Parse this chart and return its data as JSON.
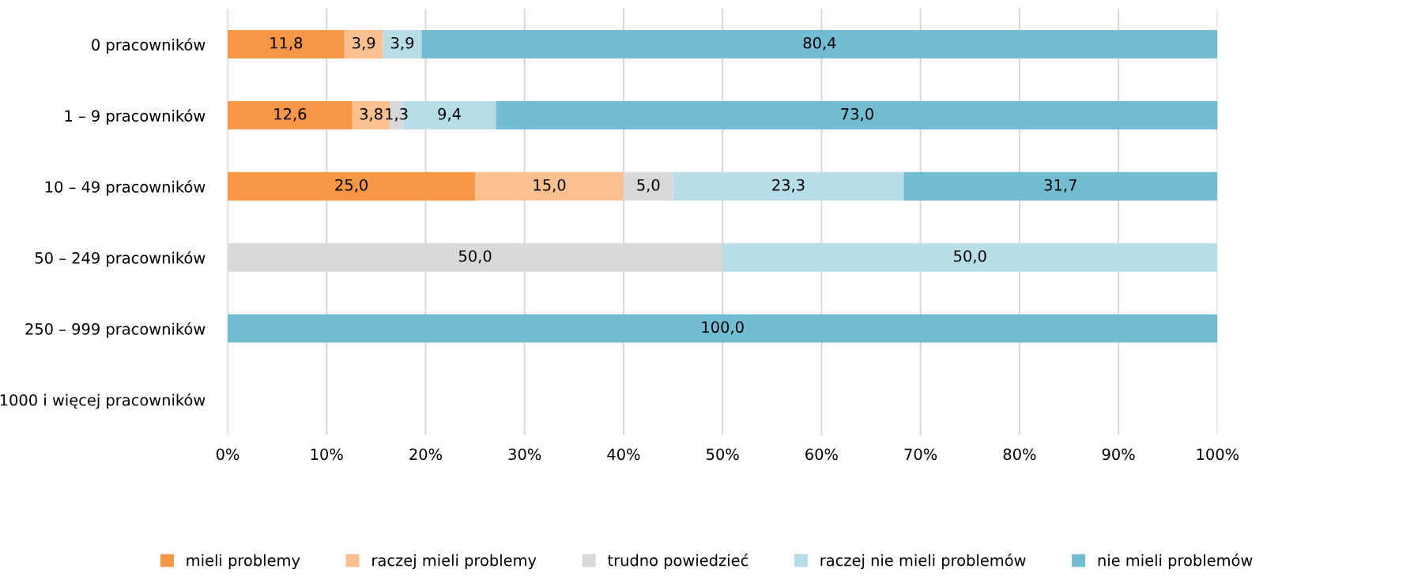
{
  "chart_data": {
    "type": "bar",
    "orientation": "horizontal",
    "stacked": true,
    "categories": [
      "0 pracowników",
      "1 – 9 pracowników",
      "10 – 49 pracowników",
      "50 – 249 pracowników",
      "250 – 999 pracowników",
      "1000 i więcej pracowników"
    ],
    "series": [
      {
        "name": "mieli problemy",
        "color": "#f79646",
        "values": [
          11.8,
          12.6,
          25.0,
          null,
          null,
          null
        ],
        "value_labels": [
          "11,8",
          "12,6",
          "25,0",
          null,
          null,
          null
        ]
      },
      {
        "name": "raczej mieli problemy",
        "color": "#fac090",
        "values": [
          3.9,
          3.8,
          15.0,
          null,
          null,
          null
        ],
        "value_labels": [
          "3,9",
          "3,8",
          "15,0",
          null,
          null,
          null
        ]
      },
      {
        "name": "trudno powiedzieć",
        "color": "#d9d9d9",
        "values": [
          null,
          1.3,
          5.0,
          50.0,
          null,
          null
        ],
        "value_labels": [
          null,
          "1,3",
          "5,0",
          "50,0",
          null,
          null
        ]
      },
      {
        "name": "raczej nie mieli problemów",
        "color": "#b7dde8",
        "values": [
          3.9,
          9.4,
          23.3,
          50.0,
          null,
          null
        ],
        "value_labels": [
          "3,9",
          "9,4",
          "23,3",
          "50,0",
          null,
          null
        ]
      },
      {
        "name": "nie mieli problemów",
        "color": "#73bdd3",
        "values": [
          80.4,
          73.0,
          31.7,
          null,
          100.0,
          null
        ],
        "value_labels": [
          "80,4",
          "73,0",
          "31,7",
          null,
          "100,0",
          null
        ]
      }
    ],
    "xlim": [
      0,
      100
    ],
    "xticks": [
      {
        "value": 0,
        "label": "0%"
      },
      {
        "value": 10,
        "label": "10%"
      },
      {
        "value": 20,
        "label": "20%"
      },
      {
        "value": 30,
        "label": "30%"
      },
      {
        "value": 40,
        "label": "40%"
      },
      {
        "value": 50,
        "label": "50%"
      },
      {
        "value": 60,
        "label": "60%"
      },
      {
        "value": 70,
        "label": "70%"
      },
      {
        "value": 80,
        "label": "80%"
      },
      {
        "value": 90,
        "label": "90%"
      },
      {
        "value": 100,
        "label": "100%"
      }
    ],
    "grid": "x",
    "legend": "bottom"
  }
}
